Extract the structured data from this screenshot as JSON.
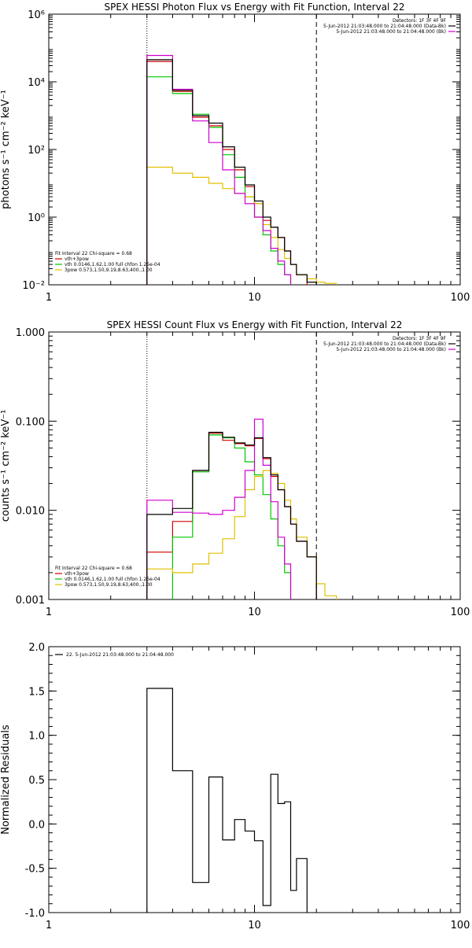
{
  "colors": {
    "fit_total": "#000000",
    "vth_plus_3pow": "#d00000",
    "vth": "#00c800",
    "3pow": "#e0c000",
    "data": "#d000d0",
    "background": "#ffffff",
    "axis": "#000000"
  },
  "chart_data": [
    {
      "type": "line",
      "title": "SPEX HESSI Photon Flux vs Energy with Fit Function, Interval 22",
      "ylabel": "photons s⁻¹ cm⁻² keV⁻¹",
      "xlabel": "",
      "xscale": "log",
      "yscale": "log",
      "xlim": [
        1,
        100
      ],
      "ylim": [
        0.01,
        1000000
      ],
      "x_ticks": [
        "1",
        "10",
        "100"
      ],
      "y_ticks": [
        "10⁻²",
        "10⁰",
        "10²",
        "10⁴",
        "10⁶"
      ],
      "legend_header": {
        "detectors": "Detectors: 1F 3F 4F 9F",
        "line1": "5-Jun-2012 21:03:48.000 to 21:04:48.000 (Data-Bk)",
        "line2": "5-Jun-2012 21:03:48.000 to 21:04:48.000 (Bk)"
      },
      "fit_info": {
        "line1": "Fit Interval 22   Chi-square = 0.68",
        "line2": "vth+3pow",
        "line3": "vth 0.0146,1.62,1.00  full chfon 1.25e-04",
        "line4": "3pow 0.573,1.50,9.19,8.63,400.,1.00"
      },
      "vlines": {
        "dotted_x": 3,
        "dashed_x": 20
      },
      "bin_edges": [
        3,
        4,
        5,
        6,
        7,
        8,
        9,
        10,
        11,
        12,
        13,
        14,
        15,
        16,
        18,
        20,
        22,
        25
      ],
      "series": [
        {
          "name": "vth+3pow",
          "color_key": "vth_plus_3pow",
          "values": [
            40000,
            5200,
            900,
            500,
            100,
            25,
            8,
            2.5,
            0.8,
            0.5,
            0.25,
            0.1,
            0.04,
            0.02,
            0.01,
            null,
            null
          ]
        },
        {
          "name": "vth",
          "color_key": "vth",
          "values": [
            14000,
            4500,
            1100,
            450,
            70,
            15,
            4,
            1,
            0.3,
            0.1,
            0.04,
            0.02,
            null,
            null,
            null,
            null,
            null
          ]
        },
        {
          "name": "3pow",
          "color_key": "3pow",
          "values": [
            30,
            20,
            15,
            10,
            7,
            5,
            4,
            2.5,
            0.6,
            0.25,
            0.11,
            0.06,
            0.04,
            0.02,
            0.015,
            0.012,
            0.011
          ]
        },
        {
          "name": "data",
          "color_key": "data",
          "values": [
            60000,
            6000,
            700,
            160,
            25,
            5,
            2.5,
            1,
            0.4,
            0.12,
            0.05,
            0.02,
            0.01,
            null,
            null,
            null,
            null
          ]
        },
        {
          "name": "",
          "color_key": "fit_total",
          "values": [
            45000,
            5600,
            1000,
            600,
            120,
            30,
            9,
            3,
            1,
            0.5,
            0.25,
            0.1,
            0.04,
            0.02,
            0.012,
            null,
            null
          ]
        }
      ]
    },
    {
      "type": "line",
      "title": "SPEX HESSI Count Flux vs Energy with Fit Function, Interval 22",
      "ylabel": "counts s⁻¹ cm⁻² keV⁻¹",
      "xlabel": "",
      "xscale": "log",
      "yscale": "log",
      "xlim": [
        1,
        100
      ],
      "ylim": [
        0.001,
        1.0
      ],
      "x_ticks": [
        "1",
        "10",
        "100"
      ],
      "y_ticks": [
        "0.001",
        "0.010",
        "0.100",
        "1.000"
      ],
      "legend_header": {
        "detectors": "Detectors: 1F 3F 4F 9F",
        "line1": "5-Jun-2012 21:03:48.000 to 21:04:48.000 (Data-Bk)",
        "line2": "5-Jun-2012 21:03:48.000 to 21:04:48.000 (Bk)"
      },
      "fit_info": {
        "line1": "Fit Interval 22   Chi-square = 0.68",
        "line2": "vth+3pow",
        "line3": "vth 0.0146,1.62,1.00  full chfon 1.25e-04",
        "line4": "3pow 0.573,1.50,9.19,8.63,400.,1.00"
      },
      "vlines": {
        "dotted_x": 3,
        "dashed_x": 20
      },
      "bin_edges": [
        3,
        4,
        5,
        6,
        7,
        8,
        9,
        10,
        11,
        12,
        13,
        14,
        15,
        16,
        18,
        20,
        22,
        25
      ],
      "series": [
        {
          "name": "vth+3pow",
          "color_key": "vth_plus_3pow",
          "values": [
            0.0034,
            0.0075,
            0.028,
            0.073,
            0.061,
            0.056,
            0.053,
            0.064,
            0.038,
            0.024,
            0.017,
            0.011,
            0.007,
            0.0045,
            0.003,
            null,
            null
          ]
        },
        {
          "name": "vth",
          "color_key": "vth",
          "values": [
            0.0007,
            0.005,
            0.027,
            0.07,
            0.065,
            0.05,
            0.035,
            0.025,
            0.015,
            0.008,
            0.004,
            0.002,
            0.001,
            null,
            null,
            null,
            null
          ]
        },
        {
          "name": "3pow",
          "color_key": "3pow",
          "values": [
            0.0022,
            0.002,
            0.0025,
            0.0033,
            0.0048,
            0.0085,
            0.017,
            0.024,
            0.028,
            0.026,
            0.02,
            0.013,
            0.008,
            0.005,
            0.003,
            0.0015,
            0.0011
          ]
        },
        {
          "name": "data",
          "color_key": "data",
          "values": [
            0.013,
            0.0095,
            0.0093,
            0.009,
            0.01,
            0.014,
            0.028,
            0.105,
            0.032,
            0.0125,
            0.005,
            0.0025,
            0.001,
            null,
            null,
            null,
            null
          ]
        },
        {
          "name": "",
          "color_key": "fit_total",
          "values": [
            0.009,
            0.0105,
            0.028,
            0.075,
            0.066,
            0.057,
            0.054,
            0.065,
            0.039,
            0.025,
            0.017,
            0.011,
            0.007,
            0.0045,
            0.003,
            null,
            null
          ]
        }
      ]
    },
    {
      "type": "line",
      "title": "",
      "ylabel": "Normalized Residuals",
      "xlabel": "",
      "xscale": "log",
      "yscale": "linear",
      "xlim": [
        1,
        100
      ],
      "ylim": [
        -1.0,
        2.0
      ],
      "x_ticks": [
        "1",
        "10",
        "100"
      ],
      "y_ticks": [
        "-1.0",
        "-0.5",
        "0.0",
        "0.5",
        "1.0",
        "1.5",
        "2.0"
      ],
      "legend": "22.  5-Jun-2012 21:03:48.000 to 21:04:48.000",
      "bin_edges": [
        3,
        4,
        5,
        6,
        7,
        8,
        9,
        10,
        11,
        12,
        13,
        14,
        15,
        16,
        18,
        20
      ],
      "series": [
        {
          "name": "22.  5-Jun-2012 21:03:48.000 to 21:04:48.000",
          "color_key": "fit_total",
          "values": [
            1.53,
            0.6,
            -0.66,
            0.53,
            -0.18,
            0.05,
            -0.08,
            -0.19,
            -0.92,
            0.56,
            0.23,
            0.25,
            -0.75,
            -0.39,
            null
          ]
        }
      ]
    }
  ]
}
